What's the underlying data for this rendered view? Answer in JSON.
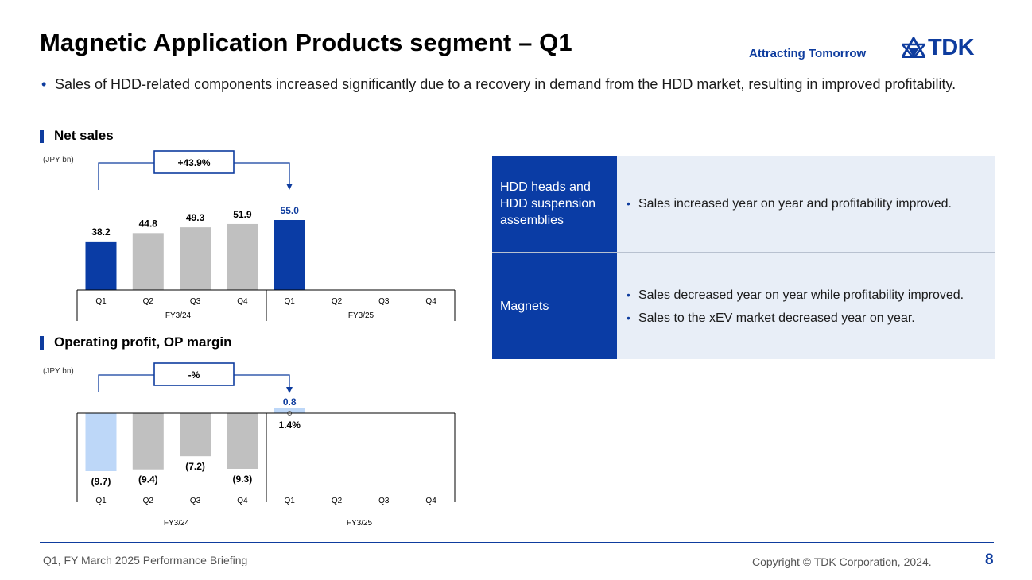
{
  "title": "Magnetic Application Products segment – Q1",
  "tagline": "Attracting Tomorrow",
  "logo_text": "TDK",
  "summary_bullet": "Sales of HDD-related components increased significantly due to a recovery in demand from the HDD market, resulting in improved profitability.",
  "sections": {
    "net_sales": "Net sales",
    "op_profit": "Operating profit, OP margin"
  },
  "chart_data": [
    {
      "type": "bar",
      "unit_label": "(JPY bn)",
      "categories": [
        "Q1",
        "Q2",
        "Q3",
        "Q4",
        "Q1",
        "Q2",
        "Q3",
        "Q4"
      ],
      "groups": [
        "FY3/24",
        "FY3/25"
      ],
      "values": [
        38.2,
        44.8,
        49.3,
        51.9,
        55.0,
        null,
        null,
        null
      ],
      "value_labels": [
        "38.2",
        "44.8",
        "49.3",
        "51.9",
        "55.0",
        "",
        "",
        ""
      ],
      "colors": [
        "#0a3ca5",
        "#c0c0c0",
        "#c0c0c0",
        "#c0c0c0",
        "#0a3ca5"
      ],
      "change_label": "+43.9%",
      "ylim": [
        0,
        70
      ]
    },
    {
      "type": "bar",
      "unit_label": "(JPY bn)",
      "categories": [
        "Q1",
        "Q2",
        "Q3",
        "Q4",
        "Q1",
        "Q2",
        "Q3",
        "Q4"
      ],
      "groups": [
        "FY3/24",
        "FY3/25"
      ],
      "values": [
        -9.7,
        -9.4,
        -7.2,
        -9.3,
        0.8,
        null,
        null,
        null
      ],
      "value_labels": [
        "(9.7)",
        "(9.4)",
        "(7.2)",
        "(9.3)",
        "0.8",
        "",
        "",
        ""
      ],
      "colors": [
        "#bdd7f8",
        "#c0c0c0",
        "#c0c0c0",
        "#c0c0c0",
        "#bdd7f8"
      ],
      "margin_labels": [
        "",
        "",
        "",
        "",
        "1.4%",
        "",
        "",
        ""
      ],
      "change_label": "-%",
      "ylim": [
        -10,
        1
      ]
    }
  ],
  "table": [
    {
      "name": "HDD heads and HDD suspension assemblies",
      "points": [
        "Sales increased year on year and profitability improved."
      ]
    },
    {
      "name": "Magnets",
      "points": [
        "Sales decreased year on year while profitability improved.",
        "Sales to the xEV market decreased year on year."
      ]
    }
  ],
  "footer": {
    "left": "Q1, FY March 2025 Performance Briefing",
    "copyright": "Copyright © TDK Corporation, 2024.",
    "page": "8"
  },
  "colors": {
    "brand": "#0e3c9e",
    "highlight_bar": "#0a3ca5",
    "light_bar": "#bdd7f8",
    "grey_bar": "#c0c0c0",
    "table_header": "#0a3ca5",
    "table_body": "#e8eef7"
  }
}
